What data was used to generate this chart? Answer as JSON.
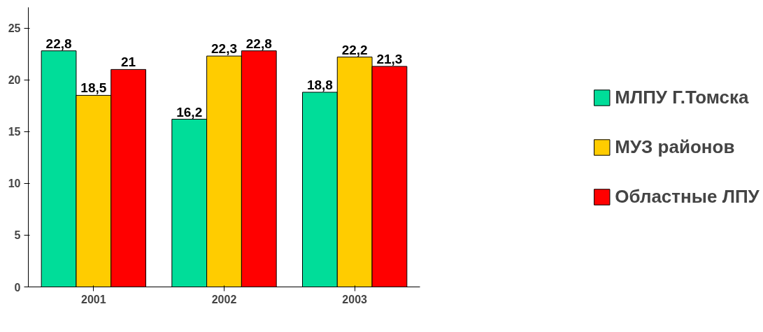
{
  "chart_data": {
    "type": "bar",
    "categories": [
      "2001",
      "2002",
      "2003"
    ],
    "series": [
      {
        "name": "МЛПУ Г.Томска",
        "color": "#00dd99",
        "values": [
          22.8,
          16.2,
          18.8
        ],
        "value_labels": [
          "22,8",
          "16,2",
          "18,8"
        ]
      },
      {
        "name": "МУЗ районов",
        "color": "#ffcc00",
        "values": [
          18.5,
          22.3,
          22.2
        ],
        "value_labels": [
          "18,5",
          "22,3",
          "22,2"
        ]
      },
      {
        "name": "Областные ЛПУ",
        "color": "#ff0000",
        "values": [
          21,
          22.8,
          21.3
        ],
        "value_labels": [
          "21",
          "22,8",
          "21,3"
        ]
      }
    ],
    "ylim": [
      0,
      27
    ],
    "yticks": [
      0,
      5,
      10,
      15,
      20,
      25
    ],
    "grid": false,
    "legend": "right"
  }
}
